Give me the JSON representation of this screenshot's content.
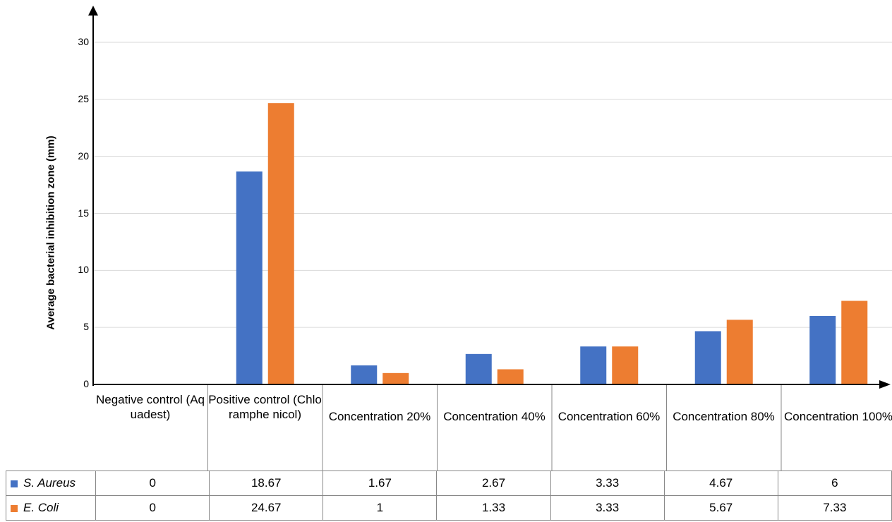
{
  "chart_data": {
    "type": "bar",
    "title": "",
    "xlabel": "",
    "ylabel": "Average bacterial inhibition zone (mm)",
    "ylim": [
      0,
      30
    ],
    "yticks": [
      "0",
      "5",
      "10",
      "15",
      "20",
      "25",
      "30"
    ],
    "grid": true,
    "legend": "data table, left",
    "categories": [
      "Negative control (Aquadest)",
      "Positive control (Chloramphe nicol)",
      "Concentration 20%",
      "Concentration 40%",
      "Concentration 60%",
      "Concentration 80%",
      "Concentration 100%"
    ],
    "series": [
      {
        "name": "S. Aureus",
        "color": "#4472C4",
        "values": [
          0,
          18.67,
          1.67,
          2.67,
          3.33,
          4.67,
          6
        ]
      },
      {
        "name": "E. Coli",
        "color": "#ED7D31",
        "values": [
          0,
          24.67,
          1,
          1.33,
          3.33,
          5.67,
          7.33
        ]
      }
    ],
    "table_labels": {
      "S. Aureus": [
        "0",
        "18.67",
        "1.67",
        "2.67",
        "3.33",
        "4.67",
        "6"
      ],
      "E. Coli": [
        "0",
        "24.67",
        "1",
        "1.33",
        "3.33",
        "5.67",
        "7.33"
      ]
    }
  }
}
